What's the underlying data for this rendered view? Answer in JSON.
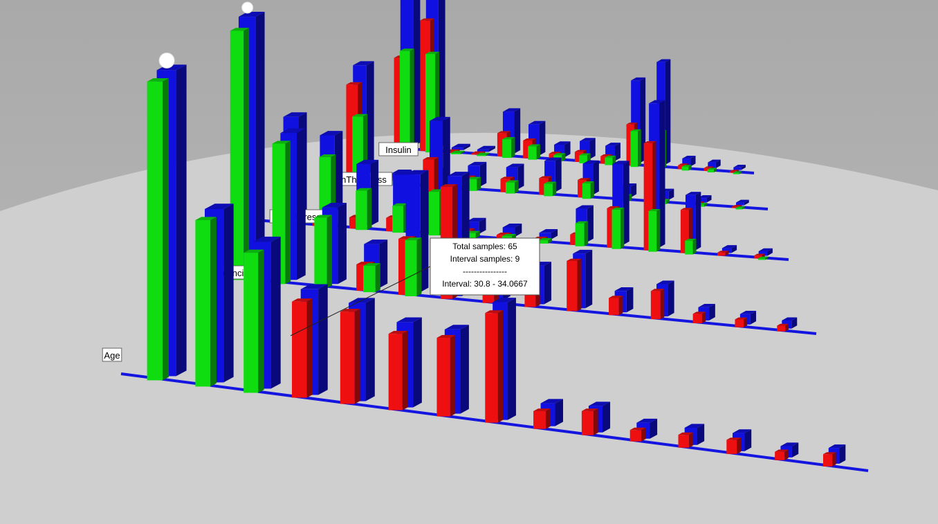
{
  "chart_data": {
    "type": "bar",
    "projection": "3d-perspective",
    "background_color": "#b0b0b0",
    "floor_color": "#cccccc",
    "axis_color": "#1515e0",
    "colors": {
      "total": "#1010e0",
      "red": "#ee1010",
      "green": "#10dd10"
    },
    "legend": "none",
    "grid": false,
    "features": [
      {
        "name": "Age",
        "bars": [
          {
            "total": 8.5,
            "a": 0,
            "b": 8.3
          },
          {
            "total": 5.0,
            "a": 0,
            "b": 4.8
          },
          {
            "total": 4.4,
            "a": 0,
            "b": 4.2
          },
          {
            "total": 3.3,
            "a": 3.0,
            "b": 0
          },
          {
            "total": 3.2,
            "a": 3.0,
            "b": 0
          },
          {
            "total": 2.9,
            "a": 2.6,
            "b": 0
          },
          {
            "total": 3.0,
            "a": 2.8,
            "b": 0
          },
          {
            "total": 4.4,
            "a": 4.1,
            "b": 0
          },
          {
            "total": 0.9,
            "a": 0.7,
            "b": 0
          },
          {
            "total": 1.1,
            "a": 1.0,
            "b": 0
          },
          {
            "total": 0.7,
            "a": 0.5,
            "b": 0
          },
          {
            "total": 0.8,
            "a": 0.6,
            "b": 0
          },
          {
            "total": 0.9,
            "a": 0.7,
            "b": 0
          },
          {
            "total": 0.6,
            "a": 0.45,
            "b": 0
          },
          {
            "total": 0.9,
            "a": 0.7,
            "b": 0
          }
        ]
      },
      {
        "name": "Pregnancies",
        "bars": [
          {
            "total": 7.8,
            "a": 0,
            "b": 7.5
          },
          {
            "total": 4.6,
            "a": 0,
            "b": 4.4
          },
          {
            "total": 2.5,
            "a": 0,
            "b": 2.3
          },
          {
            "total": 1.5,
            "a": 0.9,
            "b": 0.9
          },
          {
            "total": 4.2,
            "a": 2.0,
            "b": 2.0
          },
          {
            "total": 4.5,
            "a": 4.2,
            "b": 0
          },
          {
            "total": 1.4,
            "a": 1.1,
            "b": 0
          },
          {
            "total": 1.6,
            "a": 1.3,
            "b": 0
          },
          {
            "total": 2.4,
            "a": 2.2,
            "b": 0
          },
          {
            "total": 1.0,
            "a": 0.8,
            "b": 0
          },
          {
            "total": 1.6,
            "a": 1.4,
            "b": 0
          },
          {
            "total": 0.7,
            "a": 0.5,
            "b": 0
          },
          {
            "total": 0.6,
            "a": 0.45,
            "b": 0
          },
          {
            "total": 0.5,
            "a": 0.35,
            "b": 0
          }
        ]
      },
      {
        "name": "BloodPressure",
        "bars": [
          {
            "total": 3.4,
            "a": 0.3,
            "b": 2.5
          },
          {
            "total": 3.0,
            "a": 0.3,
            "b": 2.4
          },
          {
            "total": 2.2,
            "a": 0.4,
            "b": 1.4
          },
          {
            "total": 2.0,
            "a": 0.5,
            "b": 1.0
          },
          {
            "total": 4.3,
            "a": 2.9,
            "b": 1.7
          },
          {
            "total": 0.5,
            "a": 0.25,
            "b": 0.2
          },
          {
            "total": 0.4,
            "a": 0.2,
            "b": 0.2
          },
          {
            "total": 0.3,
            "a": 0.15,
            "b": 0.15
          },
          {
            "total": 1.6,
            "a": 0.5,
            "b": 1.1
          },
          {
            "total": 4.1,
            "a": 2.0,
            "b": 2.0
          },
          {
            "total": 7.8,
            "a": 5.8,
            "b": 2.2
          },
          {
            "total": 3.2,
            "a": 2.5,
            "b": 0.8
          },
          {
            "total": 0.3,
            "a": 0.2,
            "b": 0
          },
          {
            "total": 0.3,
            "a": 0.2,
            "b": 0.1
          }
        ]
      },
      {
        "name": "SkinThickness",
        "bars": [
          {
            "total": 4.1,
            "a": 3.5,
            "b": 2.4
          },
          {
            "total": 0.3,
            "a": 0.15,
            "b": 0.15
          },
          {
            "total": 0.5,
            "a": 0.25,
            "b": 0.25
          },
          {
            "total": 0.9,
            "a": 0.5,
            "b": 0.5
          },
          {
            "total": 1.0,
            "a": 0.6,
            "b": 0.5
          },
          {
            "total": 1.5,
            "a": 0.8,
            "b": 0.6
          },
          {
            "total": 1.6,
            "a": 0.9,
            "b": 0.8
          },
          {
            "total": 0.6,
            "a": 0.3,
            "b": 0.3
          },
          {
            "total": 0.5,
            "a": 0.2,
            "b": 0.2
          },
          {
            "total": 0.3,
            "a": 0.15,
            "b": 0.15
          },
          {
            "total": 0.2,
            "a": 0.1,
            "b": 0.1
          }
        ]
      },
      {
        "name": "Insulin",
        "bars": [
          {
            "total": 7.4,
            "a": 3.3,
            "b": 3.6
          },
          {
            "total": 7.4,
            "a": 4.9,
            "b": 3.7
          },
          {
            "total": 0.1,
            "a": 0.05,
            "b": 0.05
          },
          {
            "total": 0.1,
            "a": 0.05,
            "b": 0.05
          },
          {
            "total": 1.8,
            "a": 1.0,
            "b": 0.8
          },
          {
            "total": 1.4,
            "a": 0.8,
            "b": 0.6
          },
          {
            "total": 0.6,
            "a": 0.3,
            "b": 0.3
          },
          {
            "total": 0.9,
            "a": 0.5,
            "b": 0.4
          },
          {
            "total": 0.8,
            "a": 0.4,
            "b": 0.4
          },
          {
            "total": 4.6,
            "a": 2.3,
            "b": 2.0
          },
          {
            "total": 6.1,
            "a": 2.6,
            "b": 2.2
          },
          {
            "total": 0.5,
            "a": 0.25,
            "b": 0.25
          },
          {
            "total": 0.4,
            "a": 0.2,
            "b": 0.2
          },
          {
            "total": 0.2,
            "a": 0.1,
            "b": 0.1
          }
        ]
      }
    ],
    "tooltip": {
      "feature": "BloodPressure",
      "lines": [
        "Total samples: 65",
        "Interval samples: 9",
        "----------------",
        "Interval: 30.8 - 34.0667"
      ]
    }
  }
}
